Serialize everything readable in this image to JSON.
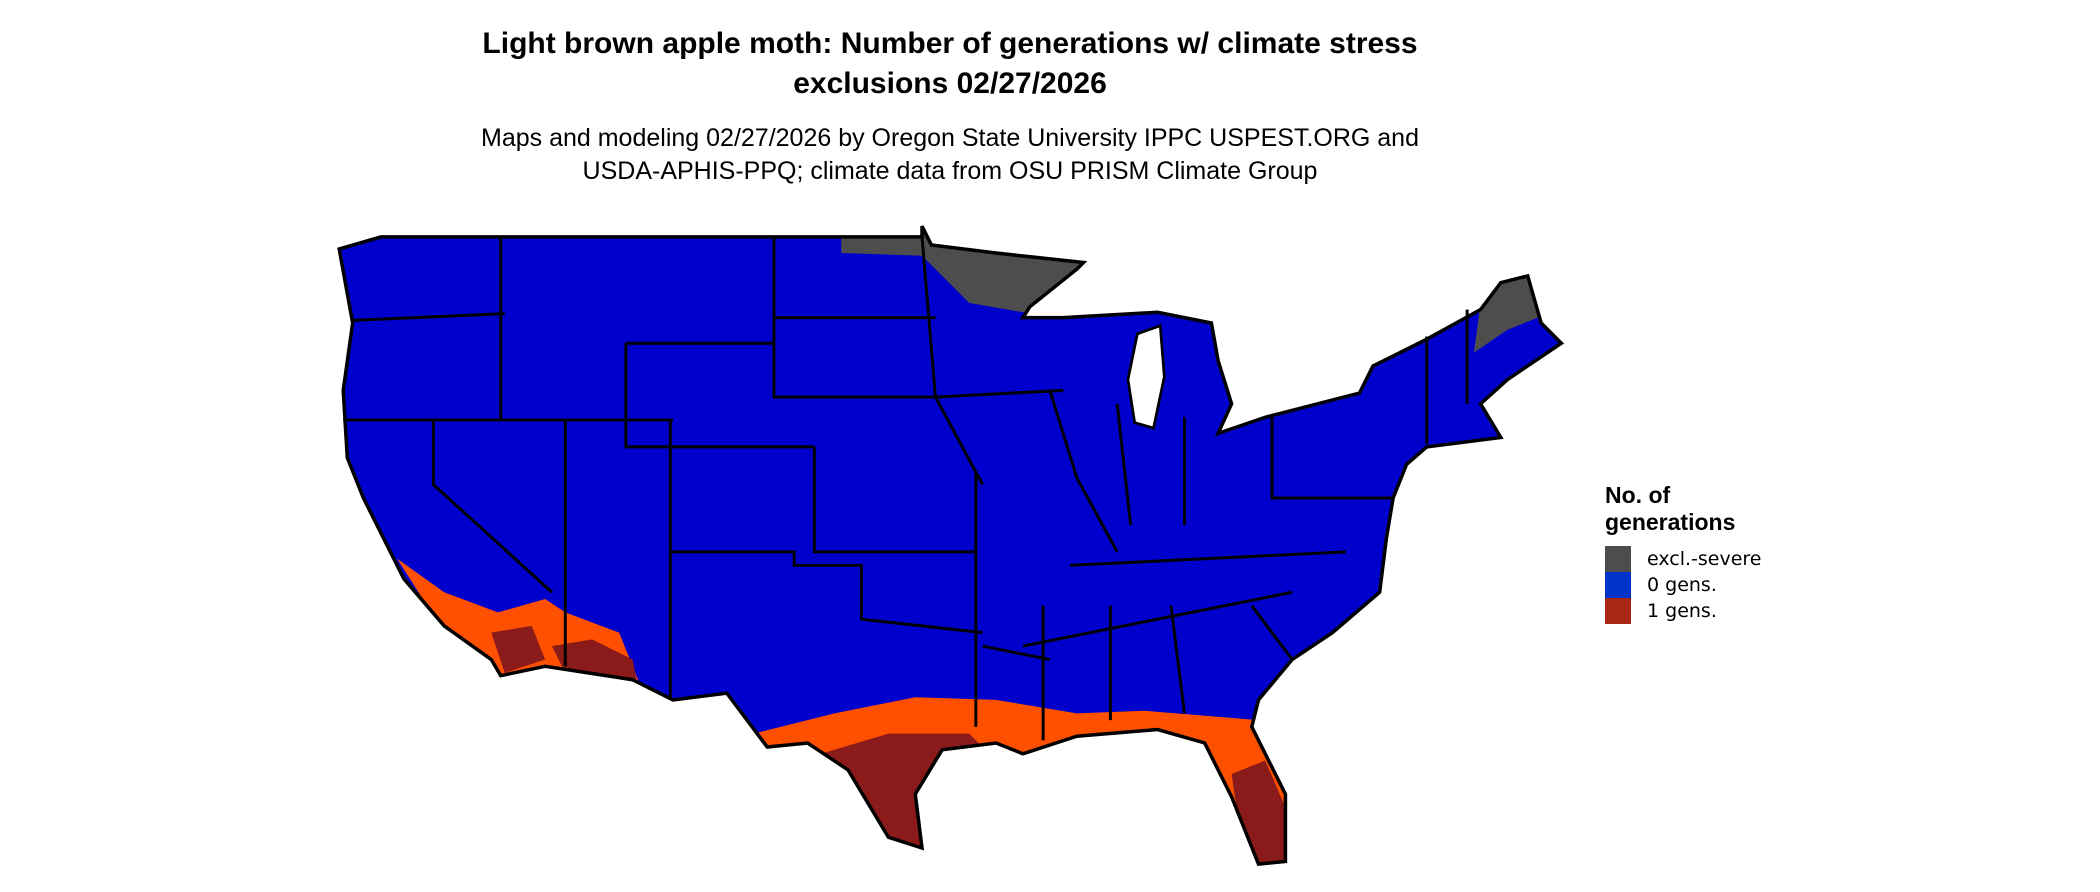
{
  "title": {
    "line1": "Light brown apple moth: Number of generations w/ climate stress",
    "line2": "exclusions 02/27/2026"
  },
  "subtitle": {
    "line1": "Maps and modeling 02/27/2026 by Oregon State University IPPC USPEST.ORG and",
    "line2": "USDA-APHIS-PPQ; climate data from OSU PRISM Climate Group"
  },
  "legend": {
    "title_line1": "No. of",
    "title_line2": "generations",
    "items": [
      {
        "label": "excl.-severe",
        "color": "#4d4d4d"
      },
      {
        "label": "0 gens.",
        "color": "#0033cc"
      },
      {
        "label": "1 gens.",
        "color": "#a82815"
      }
    ]
  },
  "map_colors": {
    "zero_gens": "#0000cc",
    "excluded": "#4d4d4d",
    "one_gen_light": "#ff5000",
    "one_gen_dark": "#8b1a1a"
  }
}
